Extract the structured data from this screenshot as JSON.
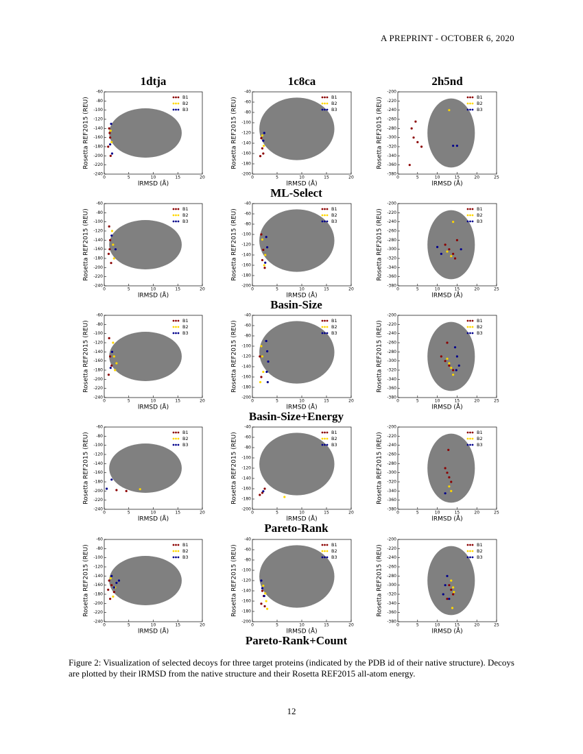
{
  "header": {
    "text": "A PREPRINT - OCTOBER 6, 2020"
  },
  "figure": {
    "x_label": "lRMSD (Å)",
    "y_label": "Rosetta REF2015 (REU)",
    "legend": [
      {
        "name": "B1",
        "color": "#8b0000"
      },
      {
        "name": "B2",
        "color": "#ffd700"
      },
      {
        "name": "B3",
        "color": "#00008b"
      }
    ],
    "columns": [
      {
        "title": "1dtja",
        "xlim": [
          0,
          20
        ],
        "xticks": [
          0,
          5,
          10,
          15,
          20
        ],
        "ylim": [
          -240,
          -60
        ],
        "yticks": [
          -60,
          -80,
          -100,
          -120,
          -140,
          -160,
          -180,
          -200,
          -220,
          -240
        ]
      },
      {
        "title": "1c8ca",
        "xlim": [
          0,
          20
        ],
        "xticks": [
          0,
          5,
          10,
          15,
          20
        ],
        "ylim": [
          -200,
          -40
        ],
        "yticks": [
          -40,
          -60,
          -80,
          -100,
          -120,
          -140,
          -160,
          -180,
          -200
        ]
      },
      {
        "title": "2h5nd",
        "xlim": [
          0,
          25
        ],
        "xticks": [
          0,
          5,
          10,
          15,
          20,
          25
        ],
        "ylim": [
          -380,
          -200
        ],
        "yticks": [
          -200,
          -220,
          -240,
          -260,
          -280,
          -300,
          -320,
          -340,
          -360,
          -380
        ]
      }
    ],
    "rows": [
      {
        "title": "ML-Select",
        "panels": [
          {
            "series": [
              {
                "x": [
                  1,
                  1.2,
                  0.8,
                  1.3,
                  1.1
                ],
                "y": [
                  -140,
                  -160,
                  -180,
                  -200,
                  -150
                ]
              },
              {
                "x": [
                  1.3,
                  1.5
                ],
                "y": [
                  -145,
                  -170
                ]
              },
              {
                "x": [
                  1.4,
                  1.2,
                  1.6
                ],
                "y": [
                  -130,
                  -175,
                  -195
                ]
              }
            ]
          },
          {
            "series": [
              {
                "x": [
                  1.8,
                  2,
                  2.2,
                  1.6
                ],
                "y": [
                  -130,
                  -150,
                  -160,
                  -165
                ]
              },
              {
                "x": [
                  2,
                  2.3
                ],
                "y": [
                  -125,
                  -145
                ]
              },
              {
                "x": [
                  2.4,
                  2.2
                ],
                "y": [
                  -120,
                  -135
                ]
              }
            ]
          },
          {
            "series": [
              {
                "x": [
                  3.5,
                  4,
                  5,
                  6,
                  3,
                  4.5
                ],
                "y": [
                  -280,
                  -300,
                  -310,
                  -320,
                  -360,
                  -265
                ]
              },
              {
                "x": [
                  13
                ],
                "y": [
                  -240
                ]
              },
              {
                "x": [
                  14,
                  15
                ],
                "y": [
                  -318,
                  -318
                ]
              }
            ]
          }
        ]
      },
      {
        "title": "Basin-Size",
        "panels": [
          {
            "series": [
              {
                "x": [
                  1,
                  1.2,
                  0.9,
                  1.4,
                  1.1
                ],
                "y": [
                  -110,
                  -140,
                  -170,
                  -190,
                  -160
                ]
              },
              {
                "x": [
                  1.6,
                  1.8,
                  2
                ],
                "y": [
                  -120,
                  -150,
                  -180
                ]
              },
              {
                "x": [
                  1.5,
                  2.3
                ],
                "y": [
                  -130,
                  -160
                ]
              }
            ]
          },
          {
            "series": [
              {
                "x": [
                  1.8,
                  2.2,
                  2,
                  2.5
                ],
                "y": [
                  -100,
                  -130,
                  -150,
                  -165
                ]
              },
              {
                "x": [
                  2,
                  2.6,
                  2.4
                ],
                "y": [
                  -110,
                  -140,
                  -160
                ]
              },
              {
                "x": [
                  2.8,
                  3,
                  2.6
                ],
                "y": [
                  -105,
                  -125,
                  -155
                ]
              }
            ]
          },
          {
            "series": [
              {
                "x": [
                  13,
                  14,
                  15,
                  14.5,
                  12
                ],
                "y": [
                  -300,
                  -310,
                  -280,
                  -320,
                  -290
                ]
              },
              {
                "x": [
                  12.5,
                  13.5,
                  14
                ],
                "y": [
                  -305,
                  -315,
                  -240
                ]
              },
              {
                "x": [
                  10,
                  11,
                  16
                ],
                "y": [
                  -295,
                  -310,
                  -300
                ]
              }
            ]
          }
        ]
      },
      {
        "title": "Basin-Size+Energy",
        "panels": [
          {
            "series": [
              {
                "x": [
                  1,
                  1.2,
                  1.5,
                  0.9
                ],
                "y": [
                  -110,
                  -150,
                  -170,
                  -190
                ]
              },
              {
                "x": [
                  1.8,
                  2,
                  2.5,
                  2.2
                ],
                "y": [
                  -120,
                  -150,
                  -165,
                  -180
                ]
              },
              {
                "x": [
                  1.6,
                  1.3
                ],
                "y": [
                  -140,
                  -175
                ]
              }
            ]
          },
          {
            "series": [
              {
                "x": [
                  1.5,
                  1.8
                ],
                "y": [
                  -120,
                  -160
                ]
              },
              {
                "x": [
                  1.8,
                  2,
                  2.2,
                  1.6
                ],
                "y": [
                  -100,
                  -120,
                  -150,
                  -170
                ]
              },
              {
                "x": [
                  2.8,
                  3,
                  3.2,
                  2.9,
                  3.1
                ],
                "y": [
                  -90,
                  -110,
                  -130,
                  -150,
                  -170
                ]
              }
            ]
          },
          {
            "series": [
              {
                "x": [
                  11,
                  12,
                  13,
                  14,
                  12.5
                ],
                "y": [
                  -290,
                  -300,
                  -310,
                  -320,
                  -260
                ]
              },
              {
                "x": [
                  12.5,
                  13,
                  13.5,
                  14
                ],
                "y": [
                  -295,
                  -305,
                  -315,
                  -330
                ]
              },
              {
                "x": [
                  14.5,
                  15,
                  15.5,
                  14.8
                ],
                "y": [
                  -270,
                  -290,
                  -310,
                  -320
                ]
              }
            ]
          }
        ]
      },
      {
        "title": "Pareto-Rank",
        "panels": [
          {
            "series": [
              {
                "x": [
                  4.5,
                  2.5
                ],
                "y": [
                  -200,
                  -198
                ]
              },
              {
                "x": [
                  7.3
                ],
                "y": [
                  -196
                ]
              },
              {
                "x": [
                  1.5,
                  0.5
                ],
                "y": [
                  -175,
                  -195
                ]
              }
            ]
          },
          {
            "series": [
              {
                "x": [
                  2,
                  2.5,
                  1.5
                ],
                "y": [
                  -168,
                  -160,
                  -172
                ]
              },
              {
                "x": [
                  6.5
                ],
                "y": [
                  -176
                ]
              },
              {
                "x": [
                  2.2
                ],
                "y": [
                  -165
                ]
              }
            ]
          },
          {
            "series": [
              {
                "x": [
                  12,
                  12.5,
                  13,
                  13.5,
                  12.8
                ],
                "y": [
                  -290,
                  -300,
                  -310,
                  -320,
                  -250
                ]
              },
              {
                "x": [
                  13,
                  13.5
                ],
                "y": [
                  -330,
                  -340
                ]
              },
              {
                "x": [
                  12
                ],
                "y": [
                  -345
                ]
              }
            ]
          }
        ]
      },
      {
        "title": "Pareto-Rank+Count",
        "panels": [
          {
            "series": [
              {
                "x": [
                  1,
                  1.5,
                  2,
                  1.2,
                  0.8
                ],
                "y": [
                  -150,
                  -160,
                  -175,
                  -190,
                  -170
                ]
              },
              {
                "x": [
                  1.3,
                  2.2,
                  1.8
                ],
                "y": [
                  -145,
                  -165,
                  -185
                ]
              },
              {
                "x": [
                  1.5,
                  2.5,
                  3,
                  2
                ],
                "y": [
                  -140,
                  -155,
                  -150,
                  -165
                ]
              }
            ]
          },
          {
            "series": [
              {
                "x": [
                  2,
                  2.3,
                  1.8,
                  2.5
                ],
                "y": [
                  -140,
                  -150,
                  -165,
                  -170
                ]
              },
              {
                "x": [
                  2.2,
                  2.6,
                  2.8,
                  3
                ],
                "y": [
                  -130,
                  -145,
                  -160,
                  -175
                ]
              },
              {
                "x": [
                  1.8,
                  2,
                  2.4
                ],
                "y": [
                  -120,
                  -135,
                  -150
                ]
              }
            ]
          },
          {
            "series": [
              {
                "x": [
                  13,
                  13.5,
                  14,
                  12.5
                ],
                "y": [
                  -300,
                  -310,
                  -320,
                  -330
                ]
              },
              {
                "x": [
                  13.5,
                  14,
                  14.2,
                  13.8
                ],
                "y": [
                  -290,
                  -305,
                  -315,
                  -350
                ]
              },
              {
                "x": [
                  12,
                  11.5,
                  13,
                  12.5
                ],
                "y": [
                  -300,
                  -320,
                  -330,
                  -280
                ]
              }
            ]
          }
        ]
      }
    ]
  },
  "caption": "Figure 2: Visualization of selected decoys for three target proteins (indicated by the PDB id of their native structure). Decoys are plotted by their lRMSD from the native structure and their Rosetta REF2015 all-atom energy.",
  "page_number": "12"
}
